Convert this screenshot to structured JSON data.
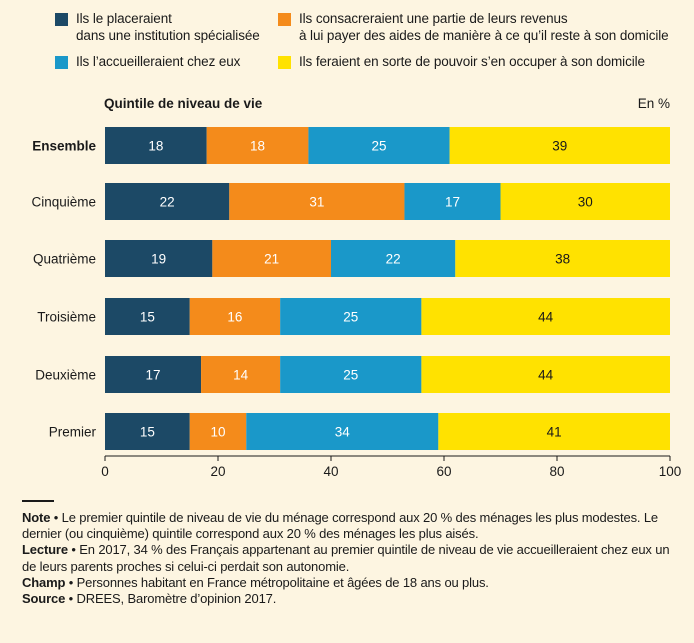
{
  "legend": [
    {
      "label": "Ils le placeraient\ndans une institution spécialisée",
      "color": "#1c4966"
    },
    {
      "label": "Ils consacreraient une partie de leurs revenus\nà lui payer des aides de manière à ce qu’il reste à son domicile",
      "color": "#f48b1b"
    },
    {
      "label": "Ils l’accueilleraient chez eux",
      "color": "#1a98c9"
    },
    {
      "label": "Ils feraient en sorte de pouvoir s’en occuper à son domicile",
      "color": "#ffe200"
    }
  ],
  "chart_data": {
    "type": "bar",
    "orientation": "horizontal",
    "stacked": true,
    "y_axis_title": "Quintile de niveau de vie",
    "unit_label": "En %",
    "categories": [
      "Ensemble",
      "Cinquième",
      "Quatrième",
      "Troisième",
      "Deuxième",
      "Premier"
    ],
    "bold_categories": [
      "Ensemble"
    ],
    "series": [
      {
        "name": "Ils le placeraient dans une institution spécialisée",
        "color": "#1c4966",
        "label_color": "#ffffff",
        "values": [
          18,
          22,
          19,
          15,
          17,
          15
        ]
      },
      {
        "name": "Ils consacreraient une partie de leurs revenus à lui payer des aides de manière à ce qu’il reste à son domicile",
        "color": "#f48b1b",
        "label_color": "#ffffff",
        "values": [
          18,
          31,
          21,
          16,
          14,
          10
        ]
      },
      {
        "name": "Ils l’accueilleraient chez eux",
        "color": "#1a98c9",
        "label_color": "#ffffff",
        "values": [
          25,
          17,
          22,
          25,
          25,
          34
        ]
      },
      {
        "name": "Ils feraient en sorte de pouvoir s’en occuper à son domicile",
        "color": "#ffe200",
        "label_color": "#1a1a1a",
        "values": [
          39,
          30,
          38,
          44,
          44,
          41
        ]
      }
    ],
    "xlim": [
      0,
      100
    ],
    "xticks": [
      0,
      20,
      40,
      60,
      80,
      100
    ]
  },
  "notes": [
    {
      "label": "Note",
      "text": "Le premier quintile de niveau de vie du ménage correspond aux 20 % des ménages les plus modestes. Le dernier (ou cinquième) quintile correspond aux 20 % des ménages les plus aisés."
    },
    {
      "label": "Lecture",
      "text": "En 2017, 34 % des Français appartenant au premier quintile de niveau de vie accueilleraient chez eux un de leurs parents proches si celui-ci perdait son autonomie."
    },
    {
      "label": "Champ",
      "text": "Personnes habitant en France métropolitaine et âgées de 18 ans ou plus."
    },
    {
      "label": "Source",
      "text": "DREES, Baromètre d’opinion 2017."
    }
  ]
}
